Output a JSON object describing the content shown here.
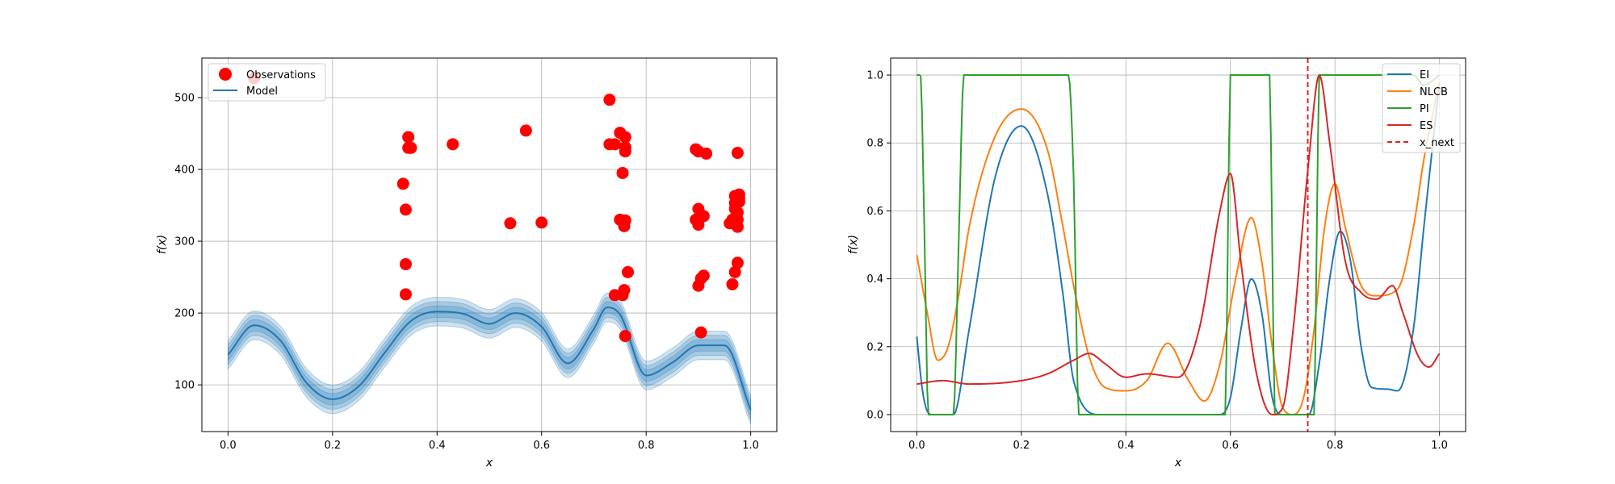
{
  "chart_data": [
    {
      "type": "scatter",
      "title": "",
      "xlabel": "x",
      "ylabel": "f(x)",
      "xlim": [
        -0.05,
        1.05
      ],
      "ylim": [
        35,
        555
      ],
      "xticks": [
        0.0,
        0.2,
        0.4,
        0.6,
        0.8,
        1.0
      ],
      "xtick_labels": [
        "0.0",
        "0.2",
        "0.4",
        "0.6",
        "0.8",
        "1.0"
      ],
      "yticks": [
        100,
        200,
        300,
        400,
        500
      ],
      "ytick_labels": [
        "100",
        "200",
        "300",
        "400",
        "500"
      ],
      "grid": true,
      "legend": {
        "placement": "top-left",
        "entries": [
          {
            "label": "Observations",
            "color": "#ff0000",
            "marker": "circle"
          },
          {
            "label": "Model",
            "color": "#1f77b4",
            "marker": "line"
          }
        ]
      },
      "observations": {
        "color": "#ff0000",
        "x": [
          0.05,
          0.335,
          0.34,
          0.34,
          0.34,
          0.345,
          0.345,
          0.35,
          0.43,
          0.54,
          0.57,
          0.6,
          0.73,
          0.73,
          0.74,
          0.74,
          0.75,
          0.75,
          0.755,
          0.755,
          0.758,
          0.758,
          0.76,
          0.76,
          0.76,
          0.76,
          0.765,
          0.76,
          0.76,
          0.895,
          0.895,
          0.9,
          0.9,
          0.9,
          0.9,
          0.905,
          0.905,
          0.91,
          0.91,
          0.915,
          0.96,
          0.965,
          0.965,
          0.97,
          0.97,
          0.97,
          0.97,
          0.975,
          0.975,
          0.975,
          0.975,
          0.975,
          0.975,
          0.978,
          0.978,
          0.978
        ],
        "y": [
          527,
          380,
          226,
          268,
          344,
          430,
          445,
          430,
          435,
          325,
          454,
          326,
          497,
          435,
          225,
          435,
          451,
          330,
          395,
          225,
          232,
          321,
          425,
          445,
          431,
          329,
          257,
          168,
          430,
          428,
          330,
          425,
          345,
          323,
          238,
          248,
          173,
          335,
          252,
          422,
          325,
          330,
          240,
          353,
          363,
          345,
          257,
          360,
          330,
          320,
          423,
          270,
          340,
          355,
          360,
          365
        ]
      },
      "model": {
        "color": "#1f77b4",
        "x": [
          0.0,
          0.05,
          0.1,
          0.15,
          0.2,
          0.25,
          0.3,
          0.35,
          0.4,
          0.45,
          0.5,
          0.55,
          0.6,
          0.65,
          0.7,
          0.725,
          0.75,
          0.8,
          0.85,
          0.9,
          0.95,
          1.0
        ],
        "mean": [
          142,
          183,
          162,
          103,
          80,
          98,
          145,
          189,
          202,
          199,
          185,
          200,
          181,
          130,
          178,
          208,
          198,
          113,
          131,
          155,
          155,
          65
        ],
        "band_halfwidths": [
          8,
          14,
          20
        ]
      }
    },
    {
      "type": "line",
      "title": "",
      "xlabel": "x",
      "ylabel": "f(x)",
      "xlim": [
        -0.05,
        1.05
      ],
      "ylim": [
        -0.05,
        1.05
      ],
      "xticks": [
        0.0,
        0.2,
        0.4,
        0.6,
        0.8,
        1.0
      ],
      "xtick_labels": [
        "0.0",
        "0.2",
        "0.4",
        "0.6",
        "0.8",
        "1.0"
      ],
      "yticks": [
        0.0,
        0.2,
        0.4,
        0.6,
        0.8,
        1.0
      ],
      "ytick_labels": [
        "0.0",
        "0.2",
        "0.4",
        "0.6",
        "0.8",
        "1.0"
      ],
      "grid": true,
      "legend": {
        "placement": "top-right",
        "entries": [
          {
            "label": "EI",
            "color": "#1f77b4",
            "style": "solid"
          },
          {
            "label": "NLCB",
            "color": "#ff7f0e",
            "style": "solid"
          },
          {
            "label": "PI",
            "color": "#2ca02c",
            "style": "solid"
          },
          {
            "label": "ES",
            "color": "#d62728",
            "style": "solid"
          },
          {
            "label": "x_next",
            "color": "#d62728",
            "style": "dashed"
          }
        ]
      },
      "series": [
        {
          "name": "EI",
          "color": "#1f77b4",
          "x": [
            0.0,
            0.01,
            0.02,
            0.03,
            0.05,
            0.07,
            0.1,
            0.15,
            0.2,
            0.25,
            0.28,
            0.3,
            0.35,
            0.58,
            0.6,
            0.62,
            0.64,
            0.66,
            0.68,
            0.7,
            0.75,
            0.77,
            0.79,
            0.81,
            0.83,
            0.85,
            0.87,
            0.9,
            0.92,
            0.95,
            0.97,
            1.0
          ],
          "y": [
            0.23,
            0.08,
            0.01,
            0.0,
            0.0,
            0.0,
            0.25,
            0.7,
            0.85,
            0.65,
            0.35,
            0.1,
            0.0,
            0.0,
            0.05,
            0.25,
            0.4,
            0.3,
            0.05,
            0.0,
            0.0,
            0.15,
            0.4,
            0.54,
            0.45,
            0.2,
            0.08,
            0.075,
            0.07,
            0.25,
            0.55,
            0.98
          ]
        },
        {
          "name": "NLCB",
          "color": "#ff7f0e",
          "x": [
            0.0,
            0.02,
            0.04,
            0.06,
            0.08,
            0.1,
            0.15,
            0.2,
            0.25,
            0.28,
            0.3,
            0.33,
            0.36,
            0.4,
            0.44,
            0.48,
            0.52,
            0.55,
            0.58,
            0.61,
            0.64,
            0.66,
            0.68,
            0.7,
            0.72,
            0.74,
            0.76,
            0.78,
            0.8,
            0.82,
            0.85,
            0.88,
            0.92,
            0.95,
            0.97,
            1.0
          ],
          "y": [
            0.47,
            0.3,
            0.16,
            0.2,
            0.35,
            0.55,
            0.82,
            0.9,
            0.78,
            0.55,
            0.38,
            0.17,
            0.08,
            0.07,
            0.1,
            0.21,
            0.1,
            0.04,
            0.15,
            0.4,
            0.58,
            0.45,
            0.2,
            0.02,
            0.0,
            0.05,
            0.25,
            0.55,
            0.68,
            0.55,
            0.38,
            0.35,
            0.37,
            0.55,
            0.75,
            0.98
          ]
        },
        {
          "name": "PI",
          "color": "#2ca02c",
          "x": [
            0.0,
            0.007,
            0.015,
            0.022,
            0.03,
            0.04,
            0.07,
            0.08,
            0.09,
            0.1,
            0.29,
            0.3,
            0.31,
            0.32,
            0.59,
            0.595,
            0.6,
            0.675,
            0.68,
            0.685,
            0.7,
            0.76,
            0.765,
            0.77,
            0.775,
            0.9,
            0.95,
            0.97,
            1.0
          ],
          "y": [
            1.0,
            1.0,
            0.5,
            0.0,
            0.0,
            0.0,
            0.0,
            0.5,
            1.0,
            1.0,
            1.0,
            0.7,
            0.0,
            0.0,
            0.0,
            0.5,
            1.0,
            1.0,
            0.5,
            0.0,
            0.0,
            0.0,
            0.5,
            1.0,
            1.0,
            1.0,
            1.0,
            0.97,
            1.0
          ]
        },
        {
          "name": "ES",
          "color": "#d62728",
          "x": [
            0.0,
            0.05,
            0.1,
            0.2,
            0.25,
            0.3,
            0.33,
            0.36,
            0.4,
            0.44,
            0.5,
            0.54,
            0.58,
            0.6,
            0.62,
            0.65,
            0.68,
            0.7,
            0.72,
            0.75,
            0.77,
            0.79,
            0.82,
            0.85,
            0.88,
            0.91,
            0.93,
            0.96,
            0.98,
            1.0
          ],
          "y": [
            0.09,
            0.1,
            0.09,
            0.1,
            0.12,
            0.16,
            0.18,
            0.15,
            0.11,
            0.12,
            0.11,
            0.25,
            0.6,
            0.71,
            0.45,
            0.12,
            0.0,
            0.02,
            0.25,
            0.75,
            1.0,
            0.8,
            0.45,
            0.36,
            0.34,
            0.38,
            0.3,
            0.17,
            0.14,
            0.18
          ]
        }
      ],
      "vline": {
        "name": "x_next",
        "x": 0.748,
        "color": "#d62728",
        "style": "dashed"
      }
    }
  ]
}
